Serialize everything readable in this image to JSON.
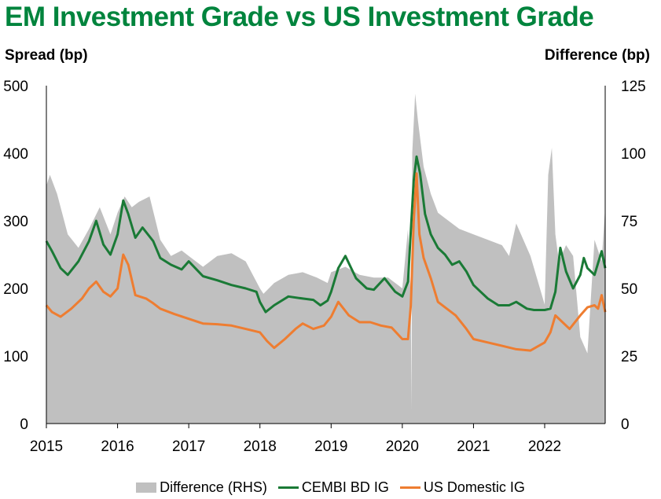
{
  "colors": {
    "title": "#00843d",
    "cembi": "#1a7a36",
    "us": "#ee7d31",
    "difference": "#c0c0c0"
  },
  "chart_data": {
    "type": "line",
    "title": "EM Investment Grade vs US Investment Grade",
    "ylabel": "Spread (bp)",
    "ylabel_right": "Difference (bp)",
    "ylim": [
      0,
      500
    ],
    "ylim_right": [
      0,
      125
    ],
    "yticks": [
      0,
      100,
      200,
      300,
      400,
      500
    ],
    "yticks_right": [
      0,
      25,
      50,
      75,
      100,
      125
    ],
    "xlim": [
      2015.0,
      2022.85
    ],
    "xticks": [
      2015,
      2016,
      2017,
      2018,
      2019,
      2020,
      2021,
      2022
    ],
    "grid": false,
    "legend_position": "bottom",
    "series": [
      {
        "name": "Difference (RHS)",
        "kind": "area",
        "axis": "right",
        "x": [
          2015.0,
          2015.05,
          2015.15,
          2015.3,
          2015.45,
          2015.6,
          2015.75,
          2015.9,
          2016.0,
          2016.1,
          2016.2,
          2016.3,
          2016.45,
          2016.6,
          2016.75,
          2016.9,
          2017.0,
          2017.2,
          2017.4,
          2017.6,
          2017.8,
          2018.0,
          2018.05,
          2018.2,
          2018.4,
          2018.6,
          2018.8,
          2018.95,
          2019.0,
          2019.2,
          2019.4,
          2019.6,
          2019.8,
          2020.0,
          2020.08,
          2020.12,
          2020.13,
          2020.14,
          2020.18,
          2020.22,
          2020.3,
          2020.4,
          2020.5,
          2020.6,
          2020.8,
          2021.0,
          2021.2,
          2021.4,
          2021.5,
          2021.6,
          2021.8,
          2022.0,
          2022.05,
          2022.1,
          2022.15,
          2022.2,
          2022.3,
          2022.4,
          2022.5,
          2022.6,
          2022.7,
          2022.8,
          2022.85
        ],
        "values": [
          88,
          92,
          85,
          70,
          65,
          72,
          80,
          70,
          78,
          84,
          80,
          82,
          84,
          68,
          62,
          64,
          62,
          58,
          62,
          63,
          60,
          50,
          48,
          52,
          55,
          56,
          54,
          52,
          56,
          58,
          55,
          54,
          54,
          50,
          72,
          45,
          5,
          100,
          122,
          112,
          95,
          85,
          78,
          76,
          72,
          70,
          68,
          66,
          62,
          74,
          62,
          44,
          92,
          102,
          70,
          60,
          66,
          62,
          32,
          26,
          68,
          60,
          80
        ]
      },
      {
        "name": "CEMBI BD IG",
        "kind": "line",
        "axis": "left",
        "x": [
          2015.0,
          2015.08,
          2015.2,
          2015.3,
          2015.45,
          2015.6,
          2015.7,
          2015.8,
          2015.9,
          2016.0,
          2016.08,
          2016.15,
          2016.25,
          2016.35,
          2016.5,
          2016.6,
          2016.75,
          2016.9,
          2017.0,
          2017.2,
          2017.4,
          2017.6,
          2017.8,
          2017.95,
          2018.0,
          2018.08,
          2018.2,
          2018.4,
          2018.6,
          2018.75,
          2018.85,
          2018.95,
          2019.0,
          2019.1,
          2019.2,
          2019.35,
          2019.5,
          2019.6,
          2019.75,
          2019.9,
          2020.0,
          2020.08,
          2020.12,
          2020.16,
          2020.2,
          2020.25,
          2020.32,
          2020.4,
          2020.5,
          2020.6,
          2020.7,
          2020.8,
          2020.9,
          2021.0,
          2021.1,
          2021.2,
          2021.35,
          2021.5,
          2021.6,
          2021.75,
          2021.85,
          2022.0,
          2022.08,
          2022.15,
          2022.22,
          2022.3,
          2022.4,
          2022.5,
          2022.55,
          2022.6,
          2022.7,
          2022.8,
          2022.85
        ],
        "values": [
          270,
          255,
          230,
          220,
          240,
          270,
          300,
          265,
          250,
          280,
          330,
          310,
          275,
          290,
          270,
          245,
          235,
          228,
          240,
          218,
          212,
          205,
          200,
          195,
          180,
          165,
          175,
          188,
          185,
          183,
          175,
          182,
          195,
          230,
          248,
          215,
          200,
          198,
          215,
          195,
          188,
          210,
          285,
          360,
          395,
          370,
          310,
          280,
          260,
          250,
          235,
          240,
          225,
          205,
          195,
          185,
          175,
          175,
          180,
          170,
          168,
          168,
          170,
          195,
          260,
          225,
          200,
          220,
          245,
          230,
          220,
          255,
          230
        ]
      },
      {
        "name": "US Domestic IG",
        "kind": "line",
        "axis": "left",
        "x": [
          2015.0,
          2015.08,
          2015.2,
          2015.35,
          2015.5,
          2015.6,
          2015.7,
          2015.8,
          2015.9,
          2016.0,
          2016.08,
          2016.15,
          2016.25,
          2016.4,
          2016.5,
          2016.6,
          2016.8,
          2017.0,
          2017.2,
          2017.4,
          2017.6,
          2017.8,
          2018.0,
          2018.1,
          2018.2,
          2018.35,
          2018.5,
          2018.6,
          2018.75,
          2018.9,
          2019.0,
          2019.1,
          2019.25,
          2019.4,
          2019.55,
          2019.7,
          2019.85,
          2020.0,
          2020.08,
          2020.12,
          2020.16,
          2020.2,
          2020.24,
          2020.3,
          2020.4,
          2020.5,
          2020.6,
          2020.75,
          2020.9,
          2021.0,
          2021.2,
          2021.4,
          2021.6,
          2021.8,
          2022.0,
          2022.08,
          2022.15,
          2022.25,
          2022.35,
          2022.5,
          2022.6,
          2022.7,
          2022.75,
          2022.8,
          2022.85
        ],
        "values": [
          175,
          165,
          158,
          170,
          185,
          200,
          210,
          195,
          188,
          200,
          250,
          235,
          190,
          185,
          178,
          170,
          162,
          155,
          148,
          147,
          145,
          140,
          135,
          122,
          112,
          125,
          140,
          148,
          140,
          145,
          158,
          180,
          160,
          150,
          150,
          145,
          142,
          125,
          125,
          175,
          300,
          370,
          280,
          245,
          215,
          180,
          172,
          160,
          140,
          125,
          120,
          115,
          110,
          108,
          120,
          135,
          160,
          150,
          140,
          160,
          172,
          175,
          170,
          190,
          165
        ]
      }
    ],
    "legend": [
      "Difference (RHS)",
      "CEMBI BD IG",
      "US Domestic IG"
    ]
  }
}
